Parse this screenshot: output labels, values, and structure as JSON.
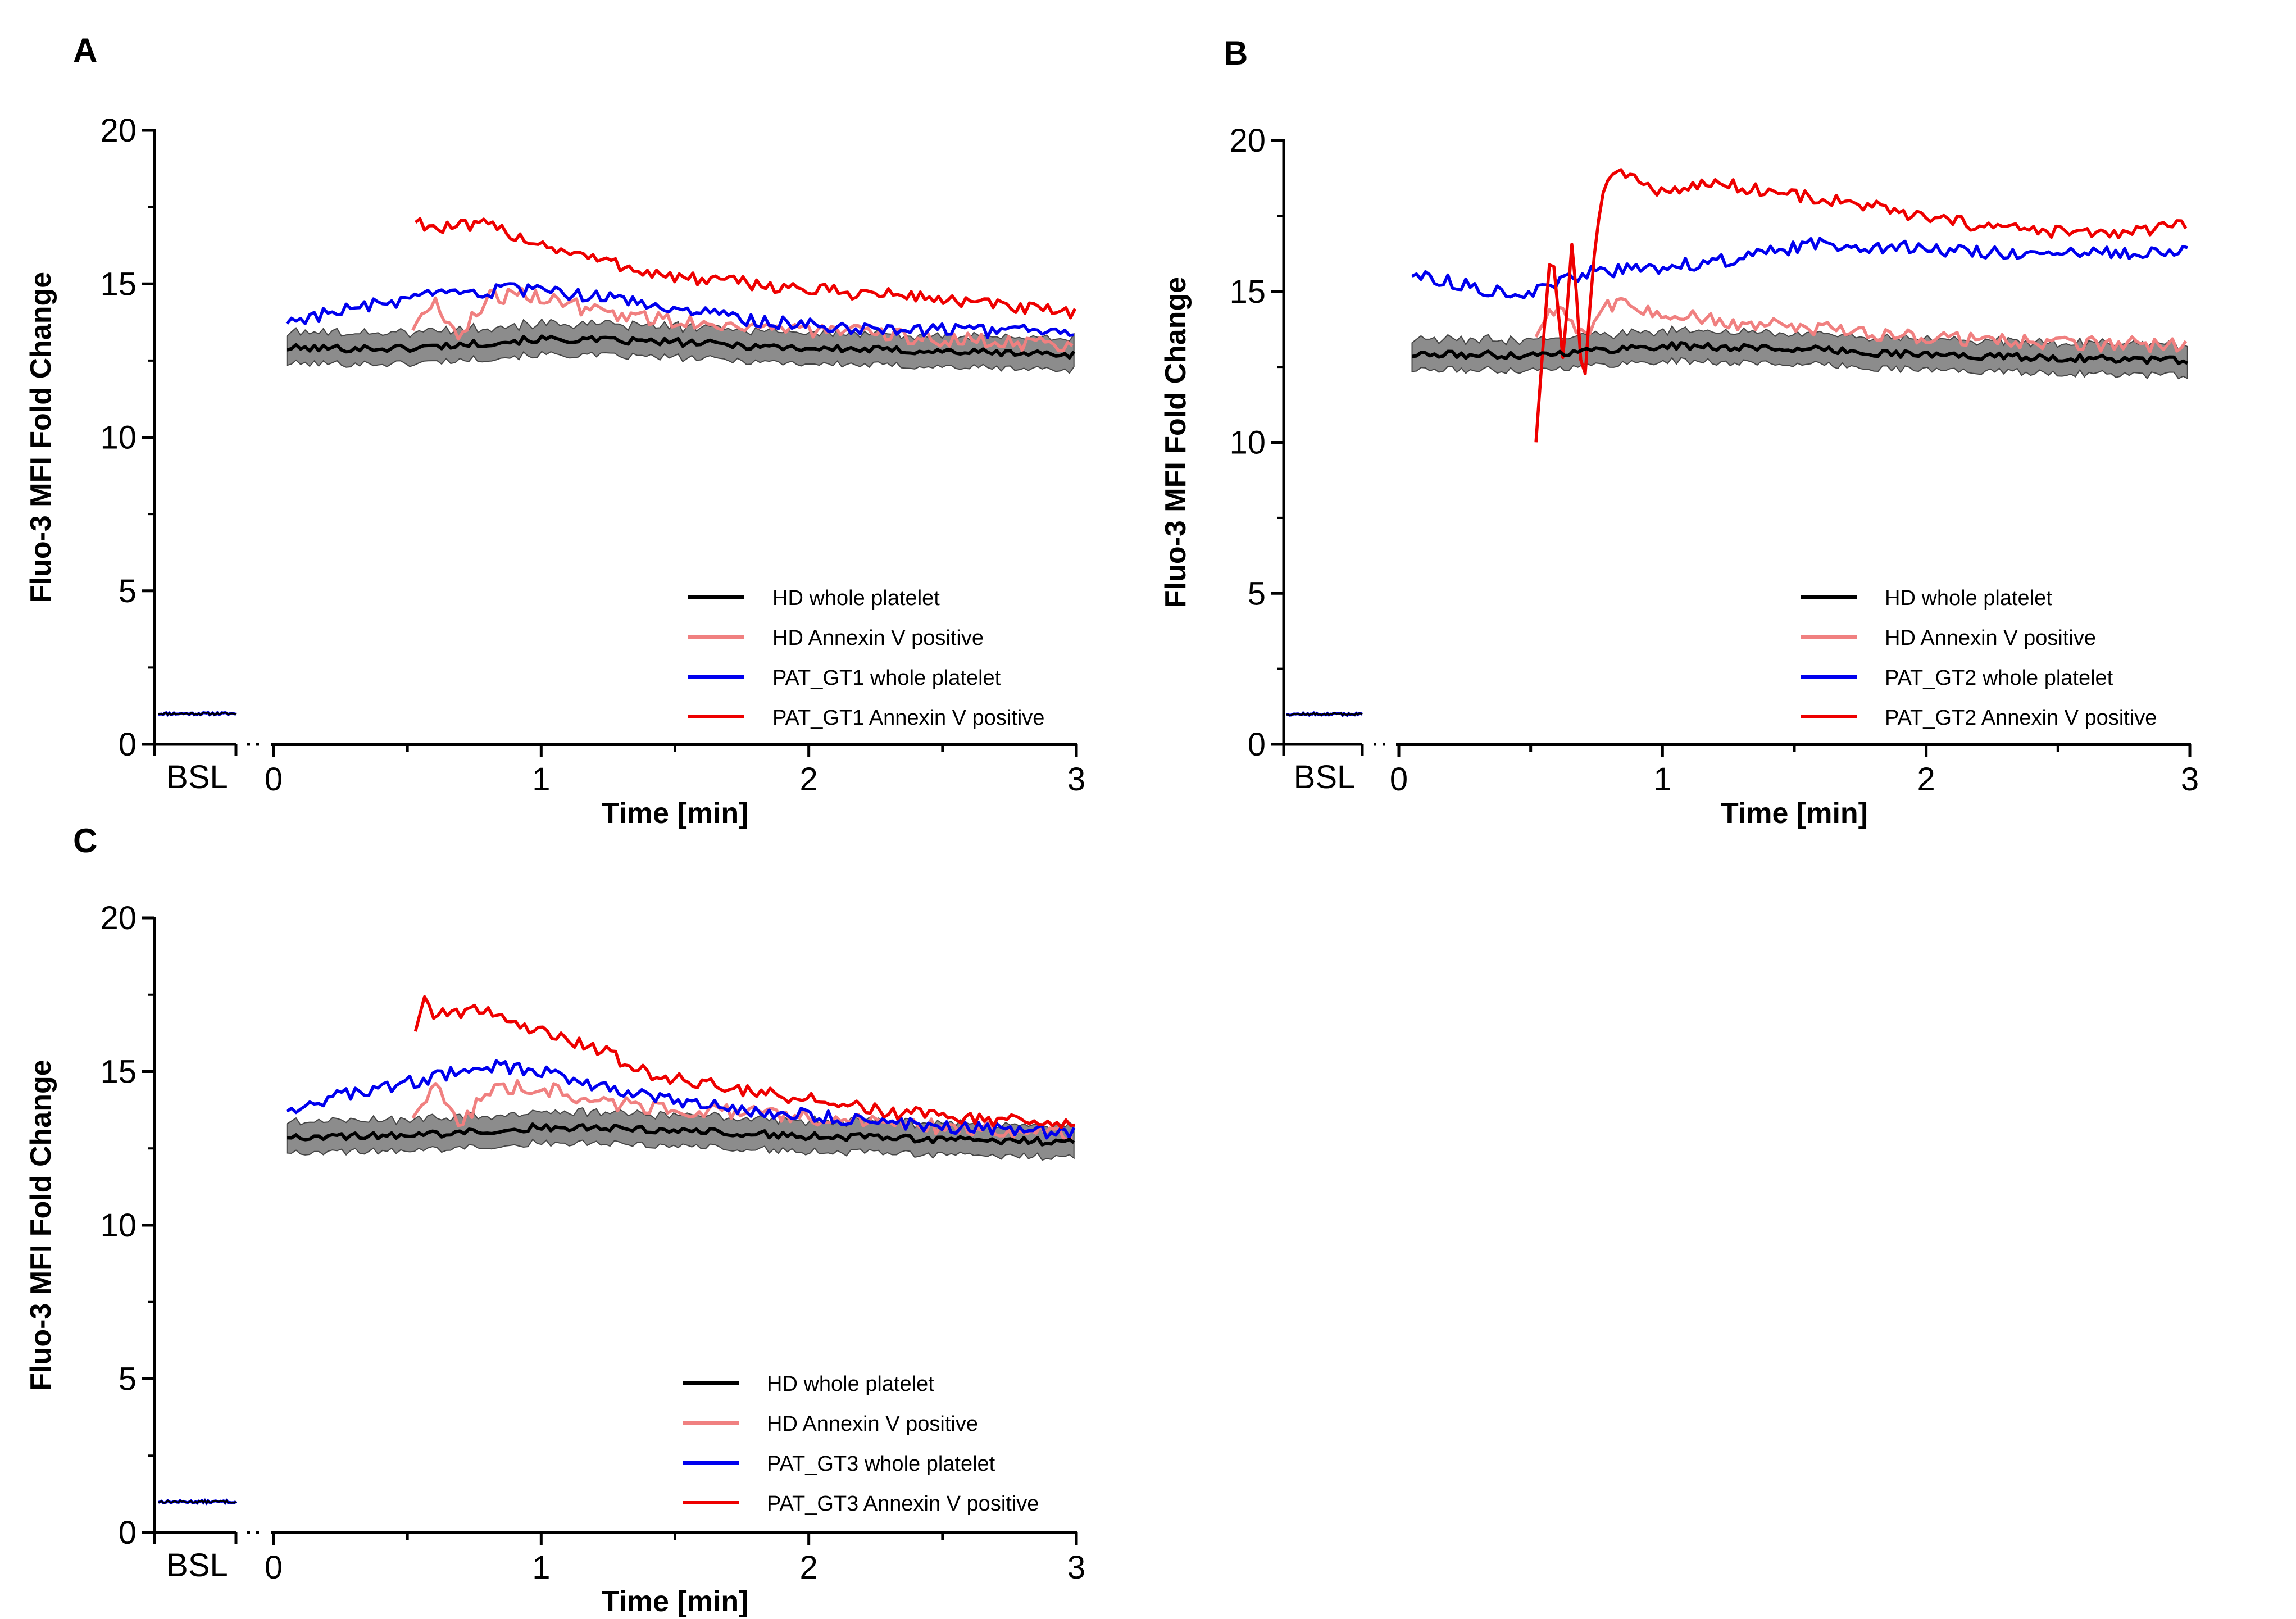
{
  "colors": {
    "hd_whole": "#000000",
    "hd_annexin": "#f08080",
    "pat_whole": "#0000ee",
    "pat_annexin": "#ee0000",
    "band": "#8c8c8c"
  },
  "chart_data": [
    {
      "panel": "A",
      "type": "line",
      "ylabel": "Fluo-3 MFI Fold Change",
      "xlabel": "Time [min]",
      "ylim": [
        0,
        20
      ],
      "xlim": [
        0,
        3
      ],
      "y_ticks": [
        "0",
        "5",
        "10",
        "15",
        "20"
      ],
      "x_ticks": [
        "0",
        "1",
        "2",
        "3"
      ],
      "baseline_label": "BSL",
      "baseline_value": 1.0,
      "band_halfwidth": 0.5,
      "legend": [
        "HD whole platelet",
        "HD Annexin V positive",
        "PAT_GT1 whole platelet",
        "PAT_GT1 Annexin V positive"
      ],
      "series": [
        {
          "name": "HD whole platelet",
          "color_key": "hd_whole",
          "x": [
            0.05,
            0.5,
            1.0,
            1.5,
            2.0,
            2.5,
            3.0
          ],
          "values": [
            12.9,
            12.9,
            13.2,
            13.1,
            12.9,
            12.8,
            12.7
          ]
        },
        {
          "name": "HD Annexin V positive",
          "color_key": "hd_annexin",
          "x": [
            0.52,
            0.6,
            0.7,
            0.8,
            1.0,
            1.2,
            1.5,
            2.0,
            2.5,
            3.0
          ],
          "values": [
            13.6,
            14.4,
            13.3,
            14.6,
            14.6,
            14.1,
            13.8,
            13.5,
            13.2,
            13.0
          ]
        },
        {
          "name": "PAT_GT1 whole platelet",
          "color_key": "pat_whole",
          "x": [
            0.05,
            0.3,
            0.6,
            0.9,
            1.2,
            1.5,
            1.8,
            2.1,
            2.5,
            3.0
          ],
          "values": [
            13.8,
            14.2,
            14.6,
            14.8,
            14.6,
            14.2,
            13.8,
            13.6,
            13.5,
            13.4
          ]
        },
        {
          "name": "PAT_GT1 Annexin V positive",
          "color_key": "pat_annexin",
          "x": [
            0.53,
            0.6,
            0.8,
            1.0,
            1.2,
            1.5,
            1.8,
            2.0,
            2.4,
            2.7,
            3.0
          ],
          "values": [
            17.1,
            16.8,
            16.9,
            16.3,
            15.8,
            15.2,
            15.0,
            14.8,
            14.6,
            14.3,
            14.0
          ]
        }
      ]
    },
    {
      "panel": "B",
      "type": "line",
      "ylabel": "Fluo-3 MFI Fold Change",
      "xlabel": "Time [min]",
      "ylim": [
        0,
        20
      ],
      "xlim": [
        0,
        3
      ],
      "y_ticks": [
        "0",
        "5",
        "10",
        "15",
        "20"
      ],
      "x_ticks": [
        "0",
        "1",
        "2",
        "3"
      ],
      "baseline_label": "BSL",
      "baseline_value": 1.0,
      "band_halfwidth": 0.5,
      "legend": [
        "HD whole platelet",
        "HD Annexin V positive",
        "PAT_GT2 whole platelet",
        "PAT_GT2 Annexin V positive"
      ],
      "series": [
        {
          "name": "HD whole platelet",
          "color_key": "hd_whole",
          "x": [
            0.05,
            0.5,
            1.0,
            1.5,
            2.0,
            2.5,
            3.0
          ],
          "values": [
            12.9,
            12.9,
            13.2,
            13.1,
            12.9,
            12.8,
            12.7
          ]
        },
        {
          "name": "HD Annexin V positive",
          "color_key": "hd_annexin",
          "x": [
            0.52,
            0.6,
            0.7,
            0.8,
            1.0,
            1.2,
            1.5,
            2.0,
            2.5,
            3.0
          ],
          "values": [
            13.6,
            14.6,
            13.6,
            14.6,
            14.3,
            14.0,
            13.8,
            13.5,
            13.3,
            13.2
          ]
        },
        {
          "name": "PAT_GT2 whole platelet",
          "color_key": "pat_whole",
          "x": [
            0.05,
            0.3,
            0.5,
            0.7,
            1.0,
            1.3,
            1.6,
            2.0,
            2.5,
            3.0
          ],
          "values": [
            15.6,
            15.1,
            14.9,
            15.6,
            15.8,
            16.1,
            16.6,
            16.4,
            16.2,
            16.4
          ]
        },
        {
          "name": "PAT_GT2 Annexin V positive",
          "color_key": "pat_annexin",
          "x": [
            0.52,
            0.58,
            0.62,
            0.66,
            0.7,
            0.75,
            0.8,
            1.0,
            1.2,
            1.5,
            1.8,
            2.0,
            2.4,
            2.7,
            3.0
          ],
          "values": [
            10.1,
            16.7,
            12.6,
            17.0,
            11.3,
            17.3,
            19.1,
            18.3,
            18.6,
            18.2,
            17.8,
            17.4,
            17.0,
            16.9,
            17.2
          ]
        }
      ]
    },
    {
      "panel": "C",
      "type": "line",
      "ylabel": "Fluo-3 MFI Fold Change",
      "xlabel": "Time [min]",
      "ylim": [
        0,
        20
      ],
      "xlim": [
        0,
        3
      ],
      "y_ticks": [
        "0",
        "5",
        "10",
        "15",
        "20"
      ],
      "x_ticks": [
        "0",
        "1",
        "2",
        "3"
      ],
      "baseline_label": "BSL",
      "baseline_value": 1.0,
      "band_halfwidth": 0.5,
      "legend": [
        "HD whole platelet",
        "HD Annexin V positive",
        "PAT_GT3 whole platelet",
        "PAT_GT3 Annexin V positive"
      ],
      "series": [
        {
          "name": "HD whole platelet",
          "color_key": "hd_whole",
          "x": [
            0.05,
            0.5,
            1.0,
            1.5,
            2.0,
            2.5,
            3.0
          ],
          "values": [
            12.9,
            12.9,
            13.2,
            13.1,
            12.9,
            12.8,
            12.7
          ]
        },
        {
          "name": "HD Annexin V positive",
          "color_key": "hd_annexin",
          "x": [
            0.52,
            0.6,
            0.7,
            0.8,
            1.0,
            1.2,
            1.5,
            2.0,
            2.5,
            3.0
          ],
          "values": [
            13.6,
            14.5,
            13.3,
            14.4,
            14.5,
            14.0,
            13.8,
            13.5,
            13.2,
            13.0
          ]
        },
        {
          "name": "PAT_GT3 whole platelet",
          "color_key": "pat_whole",
          "x": [
            0.05,
            0.3,
            0.6,
            0.8,
            1.0,
            1.2,
            1.5,
            1.8,
            2.1,
            2.5,
            3.0
          ],
          "values": [
            13.8,
            14.3,
            14.8,
            15.2,
            15.0,
            14.6,
            14.0,
            13.7,
            13.5,
            13.2,
            13.0
          ]
        },
        {
          "name": "PAT_GT3 Annexin V positive",
          "color_key": "pat_annexin",
          "x": [
            0.53,
            0.57,
            0.6,
            0.8,
            1.0,
            1.2,
            1.4,
            1.7,
            2.0,
            2.3,
            2.6,
            3.0
          ],
          "values": [
            16.4,
            17.5,
            16.9,
            17.0,
            16.3,
            15.8,
            14.9,
            14.5,
            14.1,
            13.7,
            13.5,
            13.2
          ]
        }
      ]
    }
  ]
}
